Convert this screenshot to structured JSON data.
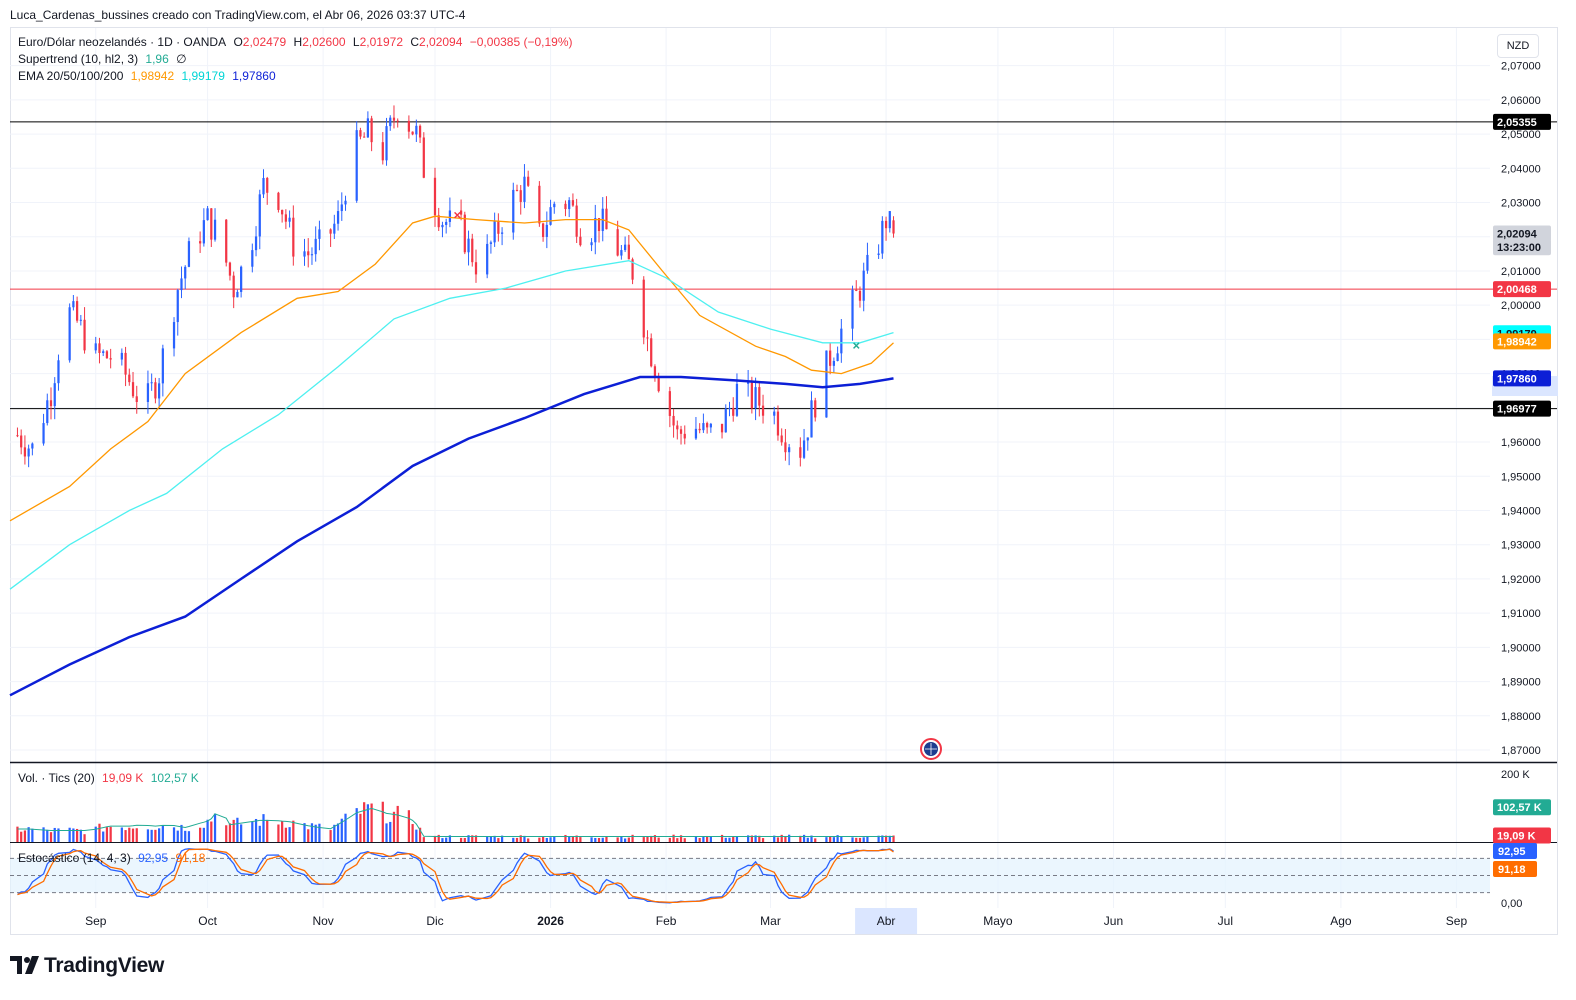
{
  "header": {
    "attribution": "Luca_Cardenas_bussines creado con TradingView.com, el Abr 06, 2026 03:37 UTC-4"
  },
  "legend": {
    "symbol": "Euro/Dólar neozelandés · 1D · OANDA",
    "o_label": "O",
    "o_value": "2,02479",
    "h_label": "H",
    "h_value": "2,02600",
    "l_label": "L",
    "l_value": "2,01972",
    "c_label": "C",
    "c_value": "2,02094",
    "change": "−0,00385 (−0,19%)",
    "supertrend_label": "Supertrend (10, hl2, 3)",
    "supertrend_value": "1,96",
    "supertrend_symbol": "∅",
    "ema_label": "EMA 20/50/100/200",
    "ema20_value": "1,98942",
    "ema50_value": "1,99179",
    "ema100_value": "1,97860"
  },
  "volume_legend": {
    "label": "Vol. · Tics (20)",
    "value1": "19,09 K",
    "value2": "102,57 K"
  },
  "stoch_legend": {
    "label": "Estocástico (14, 4, 3)",
    "k_value": "92,95",
    "d_value": "91,18"
  },
  "currency_button": "NZD",
  "logo_text": "TradingView",
  "colors": {
    "up": "#2962ff",
    "down": "#f23645",
    "ema20": "#ff9800",
    "ema50": "#4ef0f0",
    "ema200": "#0c1fd6",
    "hline_red": "#f23645",
    "hline_black": "#000000",
    "stoch_k": "#2962ff",
    "stoch_d": "#ff6d00",
    "vol_ma": "#22ab94"
  },
  "chart_data": {
    "type": "candlestick",
    "y_axis": {
      "ticks": [
        "2,07000",
        "2,06000",
        "2,05000",
        "2,04000",
        "2,03000",
        "2,02000",
        "2,01000",
        "2,00000",
        "1,99000",
        "1,98000",
        "1,97000",
        "1,96000",
        "1,95000",
        "1,94000",
        "1,93000",
        "1,92000",
        "1,91000",
        "1,90000",
        "1,89000",
        "1,88000",
        "1,87000"
      ],
      "tick_values": [
        2.07,
        2.06,
        2.05,
        2.04,
        2.03,
        2.02,
        2.01,
        2.0,
        1.99,
        1.98,
        1.97,
        1.96,
        1.95,
        1.94,
        1.93,
        1.92,
        1.91,
        1.9,
        1.89,
        1.88,
        1.87
      ],
      "range": [
        1.8665,
        2.081
      ]
    },
    "x_axis": {
      "labels": [
        "Sep",
        "Oct",
        "Nov",
        "Dic",
        "2026",
        "Feb",
        "Mar",
        "Abr",
        "Mayo",
        "Jun",
        "Jul",
        "Ago",
        "Sep"
      ],
      "label_dates": [
        "2025-09-01",
        "2025-10-01",
        "2025-11-01",
        "2025-12-01",
        "2026-01-01",
        "2026-02-01",
        "2026-03-01",
        "2026-04-01",
        "2026-05-01",
        "2026-06-01",
        "2026-07-01",
        "2026-08-01",
        "2026-09-01"
      ],
      "range": [
        "2025-08-09",
        "2026-09-10"
      ],
      "highlighted": "Abr"
    },
    "price_labels": [
      {
        "text": "2,05355",
        "value": 2.05355,
        "bg": "#000000",
        "fg": "#ffffff"
      },
      {
        "text": "2,02094",
        "value": 2.02094,
        "bg": "#d1d4dc",
        "fg": "#131722"
      },
      {
        "text": "13:23:00",
        "value": 2.01694,
        "bg": "#d1d4dc",
        "fg": "#131722"
      },
      {
        "text": "2,00468",
        "value": 2.00468,
        "bg": "#f23645",
        "fg": "#ffffff"
      },
      {
        "text": "1,99179",
        "value": 1.99179,
        "bg": "#00ffff",
        "fg": "#131722"
      },
      {
        "text": "1,98942",
        "value": 1.98942,
        "bg": "#ff9800",
        "fg": "#ffffff"
      },
      {
        "text": "1,97860",
        "value": 1.9786,
        "bg": "#0c1fd6",
        "fg": "#ffffff"
      },
      {
        "text": "1,96977",
        "value": 1.96977,
        "bg": "#000000",
        "fg": "#ffffff"
      }
    ],
    "horizontal_lines": [
      {
        "value": 2.05355,
        "color": "#000000"
      },
      {
        "value": 2.00468,
        "color": "#f23645"
      },
      {
        "value": 1.96977,
        "color": "#000000"
      }
    ],
    "series": [
      {
        "name": "Euro/Dólar neozelandés",
        "kind": "candles",
        "close_path": [
          [
            "2025-08-11",
            1.962
          ],
          [
            "2025-08-15",
            1.958
          ],
          [
            "2025-08-20",
            1.975
          ],
          [
            "2025-08-24",
            1.999
          ],
          [
            "2025-08-27",
            1.995
          ],
          [
            "2025-09-01",
            1.985
          ],
          [
            "2025-09-06",
            1.985
          ],
          [
            "2025-09-10",
            1.978
          ],
          [
            "2025-09-14",
            1.97
          ],
          [
            "2025-09-18",
            1.98
          ],
          [
            "2025-09-23",
            2.005
          ],
          [
            "2025-09-27",
            2.018
          ],
          [
            "2025-10-01",
            2.025
          ],
          [
            "2025-10-04",
            2.02
          ],
          [
            "2025-10-08",
            2.005
          ],
          [
            "2025-10-12",
            2.015
          ],
          [
            "2025-10-16",
            2.035
          ],
          [
            "2025-10-20",
            2.032
          ],
          [
            "2025-10-24",
            2.018
          ],
          [
            "2025-10-28",
            2.015
          ],
          [
            "2025-11-01",
            2.018
          ],
          [
            "2025-11-05",
            2.025
          ],
          [
            "2025-11-09",
            2.045
          ],
          [
            "2025-11-13",
            2.05
          ],
          [
            "2025-11-17",
            2.045
          ],
          [
            "2025-11-21",
            2.058
          ],
          [
            "2025-11-26",
            2.05
          ],
          [
            "2025-11-29",
            2.035
          ],
          [
            "2025-12-03",
            2.025
          ],
          [
            "2025-12-08",
            2.022
          ],
          [
            "2025-12-13",
            2.01
          ],
          [
            "2025-12-17",
            2.02
          ],
          [
            "2025-12-21",
            2.03
          ],
          [
            "2025-12-25",
            2.035
          ],
          [
            "2025-12-29",
            2.02
          ],
          [
            "2026-01-02",
            2.03
          ],
          [
            "2026-01-06",
            2.03
          ],
          [
            "2026-01-10",
            2.02
          ],
          [
            "2026-01-14",
            2.025
          ],
          [
            "2026-01-18",
            2.018
          ],
          [
            "2026-01-23",
            2.01
          ],
          [
            "2026-01-27",
            1.99
          ],
          [
            "2026-01-31",
            1.975
          ],
          [
            "2026-02-04",
            1.962
          ],
          [
            "2026-02-08",
            1.965
          ],
          [
            "2026-02-12",
            1.962
          ],
          [
            "2026-02-16",
            1.965
          ],
          [
            "2026-02-20",
            1.975
          ],
          [
            "2026-02-25",
            1.972
          ],
          [
            "2026-03-01",
            1.97
          ],
          [
            "2026-03-05",
            1.962
          ],
          [
            "2026-03-09",
            1.958
          ],
          [
            "2026-03-13",
            1.972
          ],
          [
            "2026-03-17",
            1.985
          ],
          [
            "2026-03-21",
            1.995
          ],
          [
            "2026-03-25",
            2.005
          ],
          [
            "2026-03-29",
            2.015
          ],
          [
            "2026-04-01",
            2.025
          ],
          [
            "2026-04-03",
            2.021
          ]
        ]
      },
      {
        "name": "EMA 20",
        "kind": "line",
        "color": "#ff9800",
        "points": [
          [
            "2025-08-09",
            1.937
          ],
          [
            "2025-08-25",
            1.947
          ],
          [
            "2025-09-05",
            1.958
          ],
          [
            "2025-09-15",
            1.966
          ],
          [
            "2025-09-25",
            1.98
          ],
          [
            "2025-10-10",
            1.992
          ],
          [
            "2025-10-25",
            2.002
          ],
          [
            "2025-11-05",
            2.004
          ],
          [
            "2025-11-15",
            2.012
          ],
          [
            "2025-11-25",
            2.024
          ],
          [
            "2025-12-01",
            2.026
          ],
          [
            "2025-12-12",
            2.025
          ],
          [
            "2025-12-25",
            2.024
          ],
          [
            "2026-01-05",
            2.025
          ],
          [
            "2026-01-15",
            2.025
          ],
          [
            "2026-01-22",
            2.022
          ],
          [
            "2026-01-31",
            2.01
          ],
          [
            "2026-02-10",
            1.997
          ],
          [
            "2026-02-25",
            1.988
          ],
          [
            "2026-03-05",
            1.985
          ],
          [
            "2026-03-12",
            1.981
          ],
          [
            "2026-03-20",
            1.98
          ],
          [
            "2026-03-28",
            1.983
          ],
          [
            "2026-04-03",
            1.989
          ]
        ]
      },
      {
        "name": "EMA 50",
        "kind": "line",
        "color": "#4ef0f0",
        "points": [
          [
            "2025-08-09",
            1.917
          ],
          [
            "2025-08-25",
            1.93
          ],
          [
            "2025-09-10",
            1.94
          ],
          [
            "2025-09-20",
            1.945
          ],
          [
            "2025-10-05",
            1.958
          ],
          [
            "2025-10-20",
            1.968
          ],
          [
            "2025-11-05",
            1.982
          ],
          [
            "2025-11-20",
            1.996
          ],
          [
            "2025-12-05",
            2.002
          ],
          [
            "2025-12-20",
            2.005
          ],
          [
            "2026-01-05",
            2.01
          ],
          [
            "2026-01-22",
            2.013
          ],
          [
            "2026-02-01",
            2.008
          ],
          [
            "2026-02-15",
            1.998
          ],
          [
            "2026-03-01",
            1.993
          ],
          [
            "2026-03-15",
            1.989
          ],
          [
            "2026-03-25",
            1.989
          ],
          [
            "2026-04-03",
            1.992
          ]
        ]
      },
      {
        "name": "EMA 200",
        "kind": "line",
        "color": "#0c1fd6",
        "points": [
          [
            "2025-08-09",
            1.886
          ],
          [
            "2025-08-25",
            1.895
          ],
          [
            "2025-09-10",
            1.903
          ],
          [
            "2025-09-25",
            1.909
          ],
          [
            "2025-10-10",
            1.92
          ],
          [
            "2025-10-25",
            1.931
          ],
          [
            "2025-11-10",
            1.941
          ],
          [
            "2025-11-25",
            1.953
          ],
          [
            "2025-12-10",
            1.961
          ],
          [
            "2025-12-25",
            1.967
          ],
          [
            "2026-01-10",
            1.974
          ],
          [
            "2026-01-25",
            1.979
          ],
          [
            "2026-02-05",
            1.979
          ],
          [
            "2026-02-20",
            1.978
          ],
          [
            "2026-03-05",
            1.977
          ],
          [
            "2026-03-15",
            1.976
          ],
          [
            "2026-03-25",
            1.977
          ],
          [
            "2026-04-03",
            1.9786
          ]
        ]
      }
    ],
    "volume": {
      "axis_ticks": [
        "200 K"
      ],
      "tick_values": [
        200
      ],
      "range": [
        0,
        230
      ],
      "labels": [
        {
          "text": "102,57 K",
          "value": 102.57,
          "bg": "#22ab94",
          "fg": "#ffffff"
        },
        {
          "text": "19,09 K",
          "value": 19.09,
          "bg": "#f23645",
          "fg": "#ffffff"
        }
      ],
      "profile": [
        [
          0,
          45
        ],
        [
          20,
          45
        ],
        [
          40,
          40
        ],
        [
          60,
          40
        ],
        [
          80,
          40
        ],
        [
          100,
          55
        ],
        [
          120,
          55
        ],
        [
          130,
          60
        ],
        [
          145,
          55
        ],
        [
          160,
          60
        ],
        [
          175,
          50
        ],
        [
          185,
          60
        ],
        [
          200,
          75
        ],
        [
          210,
          120
        ],
        [
          220,
          60
        ],
        [
          230,
          65
        ],
        [
          240,
          70
        ],
        [
          250,
          75
        ],
        [
          265,
          75
        ],
        [
          280,
          70
        ],
        [
          300,
          55
        ],
        [
          320,
          45
        ],
        [
          335,
          75
        ],
        [
          345,
          100
        ],
        [
          355,
          110
        ],
        [
          365,
          120
        ],
        [
          375,
          100
        ],
        [
          385,
          95
        ],
        [
          395,
          90
        ],
        [
          405,
          70
        ],
        [
          414,
          19
        ]
      ]
    },
    "stochastic": {
      "axis_ticks": [
        "0,00"
      ],
      "range": [
        0,
        100
      ],
      "bands": [
        80,
        50,
        20
      ],
      "labels": [
        {
          "text": "92,95",
          "value": 92.95,
          "bg": "#2962ff",
          "fg": "#ffffff"
        },
        {
          "text": "91,18",
          "value": 91.18,
          "bg": "#ff6d00",
          "fg": "#ffffff"
        }
      ]
    },
    "markers": [
      {
        "date": "2025-12-07",
        "value": 2.0262,
        "symbol": "×",
        "color": "#f23645"
      },
      {
        "date": "2026-03-24",
        "value": 1.988,
        "symbol": "×",
        "color": "#22ab94"
      }
    ]
  }
}
